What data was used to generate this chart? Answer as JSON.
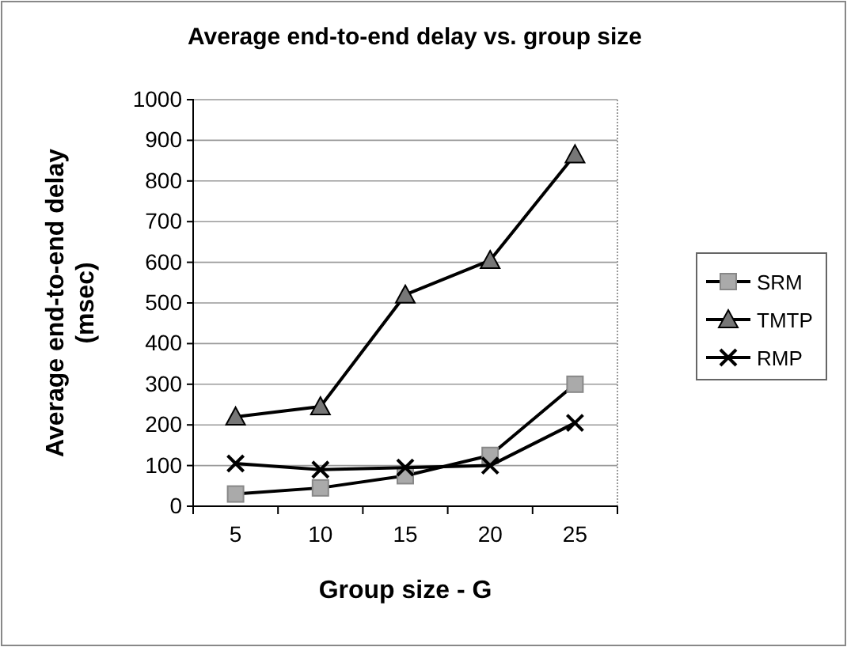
{
  "chart_data": {
    "type": "line",
    "title": "Average end-to-end delay vs. group size",
    "xlabel": "Group size - G",
    "ylabel": "Average end-to-end delay (msec)",
    "categories": [
      "5",
      "10",
      "15",
      "20",
      "25"
    ],
    "series": [
      {
        "name": "SRM",
        "color": "#000000",
        "marker": "square",
        "values": [
          30,
          45,
          75,
          125,
          300
        ]
      },
      {
        "name": "TMTP",
        "color": "#000000",
        "marker": "triangle",
        "values": [
          220,
          245,
          520,
          605,
          865
        ]
      },
      {
        "name": "RMP",
        "color": "#000000",
        "marker": "cross",
        "values": [
          105,
          90,
          95,
          100,
          205
        ]
      }
    ],
    "ylim": [
      0,
      1000
    ],
    "yticks": [
      0,
      100,
      200,
      300,
      400,
      500,
      600,
      700,
      800,
      900,
      1000
    ],
    "grid": "y",
    "legend": "right"
  }
}
